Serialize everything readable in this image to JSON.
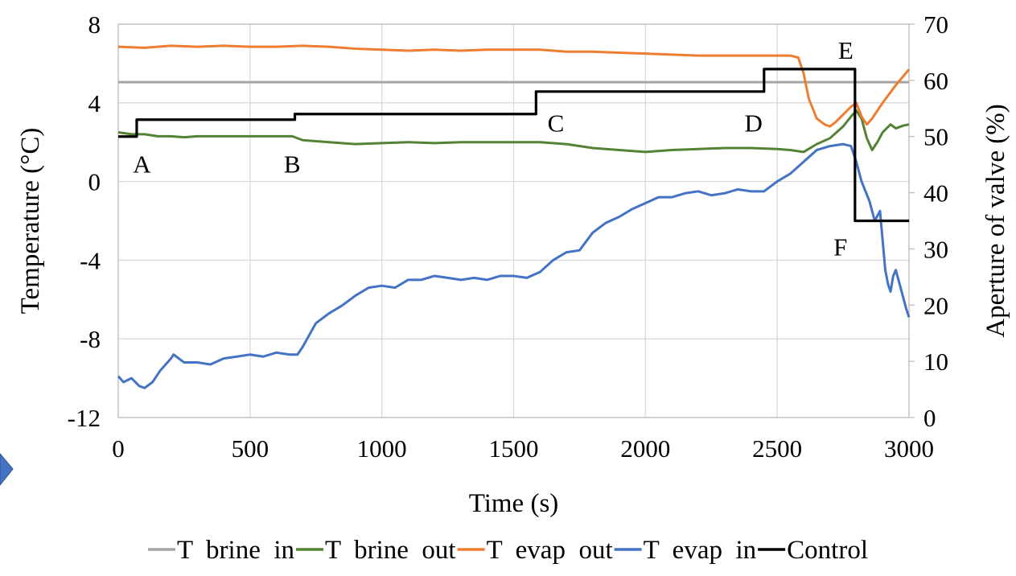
{
  "chart_data": {
    "type": "line",
    "xlabel": "Time (s)",
    "ylabel": "Temperature (°C)",
    "y2label": "Aperture of valve (%)",
    "xlim": [
      0,
      3000
    ],
    "ylim": [
      -12,
      8
    ],
    "y2lim": [
      0,
      70
    ],
    "x_ticks": [
      0,
      500,
      1000,
      1500,
      2000,
      2500,
      3000
    ],
    "y_ticks": [
      -12,
      -8,
      -4,
      0,
      4,
      8
    ],
    "y2_ticks": [
      0,
      10,
      20,
      30,
      40,
      50,
      60,
      70
    ],
    "grid": true,
    "legend_position": "bottom",
    "series": [
      {
        "name": "T  brine  in",
        "axis": "left",
        "color": "#a5a5a5",
        "x": [
          0,
          500,
          1000,
          1500,
          2000,
          2500,
          3000
        ],
        "y": [
          5.05,
          5.05,
          5.05,
          5.05,
          5.05,
          5.05,
          5.05
        ]
      },
      {
        "name": "T  brine  out",
        "axis": "left",
        "color": "#548235",
        "x": [
          0,
          50,
          100,
          150,
          200,
          250,
          300,
          400,
          500,
          600,
          660,
          700,
          800,
          900,
          1000,
          1100,
          1200,
          1300,
          1400,
          1500,
          1600,
          1700,
          1800,
          1900,
          2000,
          2100,
          2200,
          2300,
          2400,
          2500,
          2550,
          2600,
          2650,
          2700,
          2750,
          2780,
          2800,
          2820,
          2840,
          2860,
          2880,
          2900,
          2930,
          2950,
          2980,
          3000
        ],
        "y": [
          2.5,
          2.4,
          2.4,
          2.3,
          2.3,
          2.25,
          2.3,
          2.3,
          2.3,
          2.3,
          2.3,
          2.1,
          2.0,
          1.9,
          1.95,
          2.0,
          1.95,
          2.0,
          2.0,
          2.0,
          2.0,
          1.9,
          1.7,
          1.6,
          1.5,
          1.6,
          1.65,
          1.7,
          1.7,
          1.65,
          1.6,
          1.5,
          1.9,
          2.2,
          2.8,
          3.3,
          3.6,
          3.2,
          2.2,
          1.6,
          2.0,
          2.5,
          2.9,
          2.7,
          2.85,
          2.9
        ]
      },
      {
        "name": "T  evap  out",
        "axis": "left",
        "color": "#ed7d31",
        "x": [
          0,
          100,
          200,
          300,
          400,
          500,
          600,
          700,
          800,
          900,
          1000,
          1100,
          1200,
          1300,
          1400,
          1500,
          1600,
          1700,
          1800,
          1900,
          2000,
          2100,
          2200,
          2300,
          2400,
          2500,
          2550,
          2580,
          2600,
          2620,
          2650,
          2680,
          2700,
          2720,
          2750,
          2780,
          2800,
          2820,
          2840,
          2860,
          2900,
          2950,
          3000
        ],
        "y": [
          6.85,
          6.8,
          6.9,
          6.85,
          6.9,
          6.85,
          6.85,
          6.9,
          6.85,
          6.75,
          6.7,
          6.65,
          6.7,
          6.65,
          6.7,
          6.7,
          6.7,
          6.6,
          6.6,
          6.55,
          6.5,
          6.45,
          6.4,
          6.4,
          6.4,
          6.4,
          6.4,
          6.3,
          5.5,
          4.2,
          3.2,
          2.9,
          2.8,
          3.0,
          3.4,
          3.8,
          4.0,
          3.3,
          2.9,
          3.2,
          4.0,
          4.9,
          5.7
        ]
      },
      {
        "name": "T  evap  in",
        "axis": "left",
        "color": "#4472c4",
        "x": [
          0,
          20,
          50,
          80,
          100,
          130,
          160,
          200,
          210,
          250,
          300,
          350,
          400,
          450,
          500,
          550,
          600,
          650,
          680,
          700,
          750,
          800,
          850,
          900,
          950,
          1000,
          1050,
          1100,
          1150,
          1200,
          1250,
          1300,
          1350,
          1400,
          1450,
          1500,
          1550,
          1600,
          1650,
          1700,
          1750,
          1800,
          1850,
          1900,
          1950,
          2000,
          2050,
          2100,
          2150,
          2200,
          2250,
          2300,
          2350,
          2400,
          2450,
          2500,
          2550,
          2600,
          2650,
          2700,
          2750,
          2780,
          2800,
          2820,
          2850,
          2870,
          2890,
          2900,
          2910,
          2920,
          2930,
          2940,
          2950,
          2960,
          2970,
          2980,
          2990,
          3000
        ],
        "y": [
          -9.9,
          -10.2,
          -10.0,
          -10.4,
          -10.5,
          -10.2,
          -9.6,
          -9.0,
          -8.8,
          -9.2,
          -9.2,
          -9.3,
          -9.0,
          -8.9,
          -8.8,
          -8.9,
          -8.7,
          -8.8,
          -8.8,
          -8.4,
          -7.2,
          -6.7,
          -6.3,
          -5.8,
          -5.4,
          -5.3,
          -5.4,
          -5.0,
          -5.0,
          -4.8,
          -4.9,
          -5.0,
          -4.9,
          -5.0,
          -4.8,
          -4.8,
          -4.9,
          -4.6,
          -4.0,
          -3.6,
          -3.5,
          -2.6,
          -2.1,
          -1.8,
          -1.4,
          -1.1,
          -0.8,
          -0.8,
          -0.6,
          -0.5,
          -0.7,
          -0.6,
          -0.4,
          -0.5,
          -0.5,
          0.0,
          0.4,
          1.0,
          1.6,
          1.8,
          1.9,
          1.8,
          1.0,
          0.0,
          -1.0,
          -2.0,
          -1.5,
          -3.0,
          -4.5,
          -5.2,
          -5.6,
          -4.8,
          -4.5,
          -5.0,
          -5.5,
          -6.0,
          -6.5,
          -6.9
        ]
      },
      {
        "name": "Control",
        "axis": "right",
        "color": "#000000",
        "step": true,
        "x": [
          0,
          70,
          670,
          1585,
          2450,
          2795,
          3000
        ],
        "y": [
          50,
          53,
          54,
          58,
          62,
          35,
          35
        ]
      }
    ],
    "annotations": [
      {
        "text": "A",
        "x": 90,
        "y": 0.9
      },
      {
        "text": "B",
        "x": 660,
        "y": 0.9
      },
      {
        "text": "C",
        "x": 1660,
        "y": 3.0
      },
      {
        "text": "D",
        "x": 2410,
        "y": 3.0
      },
      {
        "text": "E",
        "x": 2760,
        "y": 6.7
      },
      {
        "text": "F",
        "x": 2740,
        "y": -3.3
      }
    ]
  }
}
